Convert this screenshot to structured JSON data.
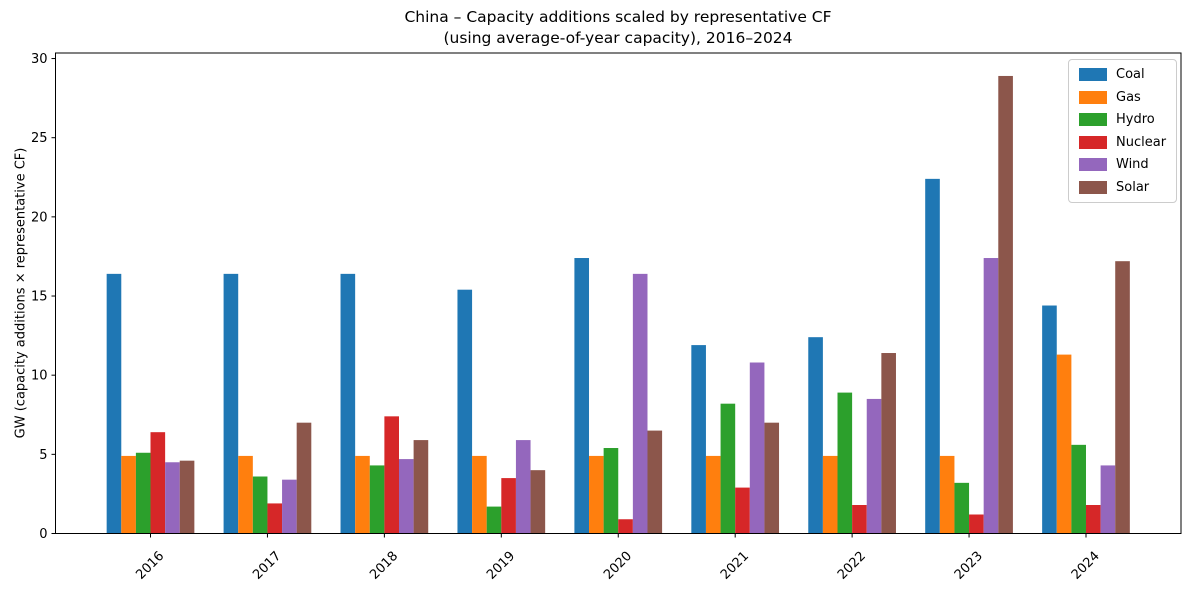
{
  "figure": {
    "background": "#ffffff",
    "text_color": "#000000"
  },
  "chart_data": {
    "type": "bar",
    "title": "China – Capacity additions scaled by representative CF\n(using average-of-year capacity), 2016–2024",
    "title_line1": "China – Capacity additions scaled by representative CF",
    "title_line2": "(using average-of-year capacity), 2016–2024",
    "xlabel": "",
    "ylabel": "GW (capacity additions × representative CF)",
    "categories": [
      "2016",
      "2017",
      "2018",
      "2019",
      "2020",
      "2021",
      "2022",
      "2023",
      "2024"
    ],
    "series": [
      {
        "name": "Coal",
        "color": "#1f77b4",
        "values": [
          16.4,
          16.4,
          16.4,
          15.4,
          17.4,
          11.9,
          12.4,
          22.4,
          14.4
        ]
      },
      {
        "name": "Gas",
        "color": "#ff7f0e",
        "values": [
          4.9,
          4.9,
          4.9,
          4.9,
          4.9,
          4.9,
          4.9,
          4.9,
          11.3
        ]
      },
      {
        "name": "Hydro",
        "color": "#2ca02c",
        "values": [
          5.1,
          3.6,
          4.3,
          1.7,
          5.4,
          8.2,
          8.9,
          3.2,
          5.6
        ]
      },
      {
        "name": "Nuclear",
        "color": "#d62728",
        "values": [
          6.4,
          1.9,
          7.4,
          3.5,
          0.9,
          2.9,
          1.8,
          1.2,
          1.8
        ]
      },
      {
        "name": "Wind",
        "color": "#9467bd",
        "values": [
          4.5,
          3.4,
          4.7,
          5.9,
          16.4,
          10.8,
          8.5,
          17.4,
          4.3
        ]
      },
      {
        "name": "Solar",
        "color": "#8c564b",
        "values": [
          4.6,
          7.0,
          5.9,
          4.0,
          6.5,
          7.0,
          11.4,
          28.9,
          17.2
        ]
      }
    ],
    "ylim": [
      0,
      30
    ],
    "yticks": [
      0,
      5,
      10,
      15,
      20,
      25,
      30
    ],
    "grid": false,
    "legend": {
      "position": "upper right",
      "entries": [
        "Coal",
        "Gas",
        "Hydro",
        "Nuclear",
        "Wind",
        "Solar"
      ]
    }
  }
}
